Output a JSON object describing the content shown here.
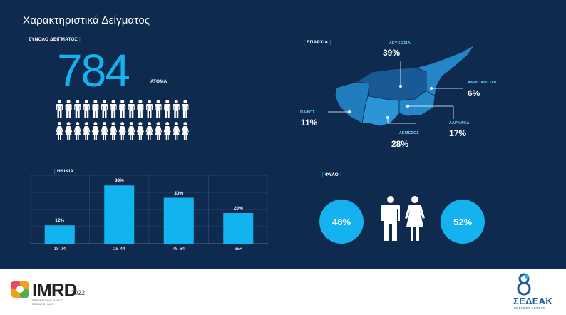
{
  "title": "Χαρακτηριστικά Δείγματος",
  "sample": {
    "label": "ΣΥΝΟΛΟ ΔΕΙΓΜΑΤΟΣ",
    "total": "784",
    "unit": "ΑΤΟΜΑ"
  },
  "age": {
    "label": "ΗΛΙΚΙΑ"
  },
  "chart_data": {
    "type": "bar",
    "categories": [
      "18-24",
      "25-44",
      "45-64",
      "65+"
    ],
    "values": [
      12,
      38,
      30,
      20
    ],
    "value_labels": [
      "12%",
      "38%",
      "30%",
      "20%"
    ],
    "ylim": [
      0,
      40
    ],
    "grid": true,
    "color": "#12b4ef"
  },
  "region": {
    "label": "ΕΠΑΡΧΙΑ",
    "items": [
      {
        "name": "ΛΕΥΚΩΣΙΑ",
        "pct": "39%"
      },
      {
        "name": "ΑΜΜΟΧΩΣΤΟΣ",
        "pct": "6%"
      },
      {
        "name": "ΠΑΦΟΣ",
        "pct": "11%"
      },
      {
        "name": "ΛΑΡΝΑΚΑ",
        "pct": "17%"
      },
      {
        "name": "ΛΕΜΕΣΟΣ",
        "pct": "28%"
      }
    ]
  },
  "gender": {
    "label": "ΦΥΛΟ",
    "male_pct": "48%",
    "female_pct": "52%"
  },
  "footer": {
    "imrd_name": "IMRD",
    "imrd_year": "2022",
    "imrd_sub": "INTERNATIONAL MARKET RESEARCH DAYS",
    "sedeak_name": "ΣΕΔΕΑΚ",
    "sedeak_sub": "ΕΡΕΥΝΕΣ ΑΓΟΡΑΣ"
  },
  "colors": {
    "background": "#0f2a4f",
    "accent": "#12b4ef",
    "map_light": "#2a8fce",
    "map_dark": "#1a6aa6"
  }
}
